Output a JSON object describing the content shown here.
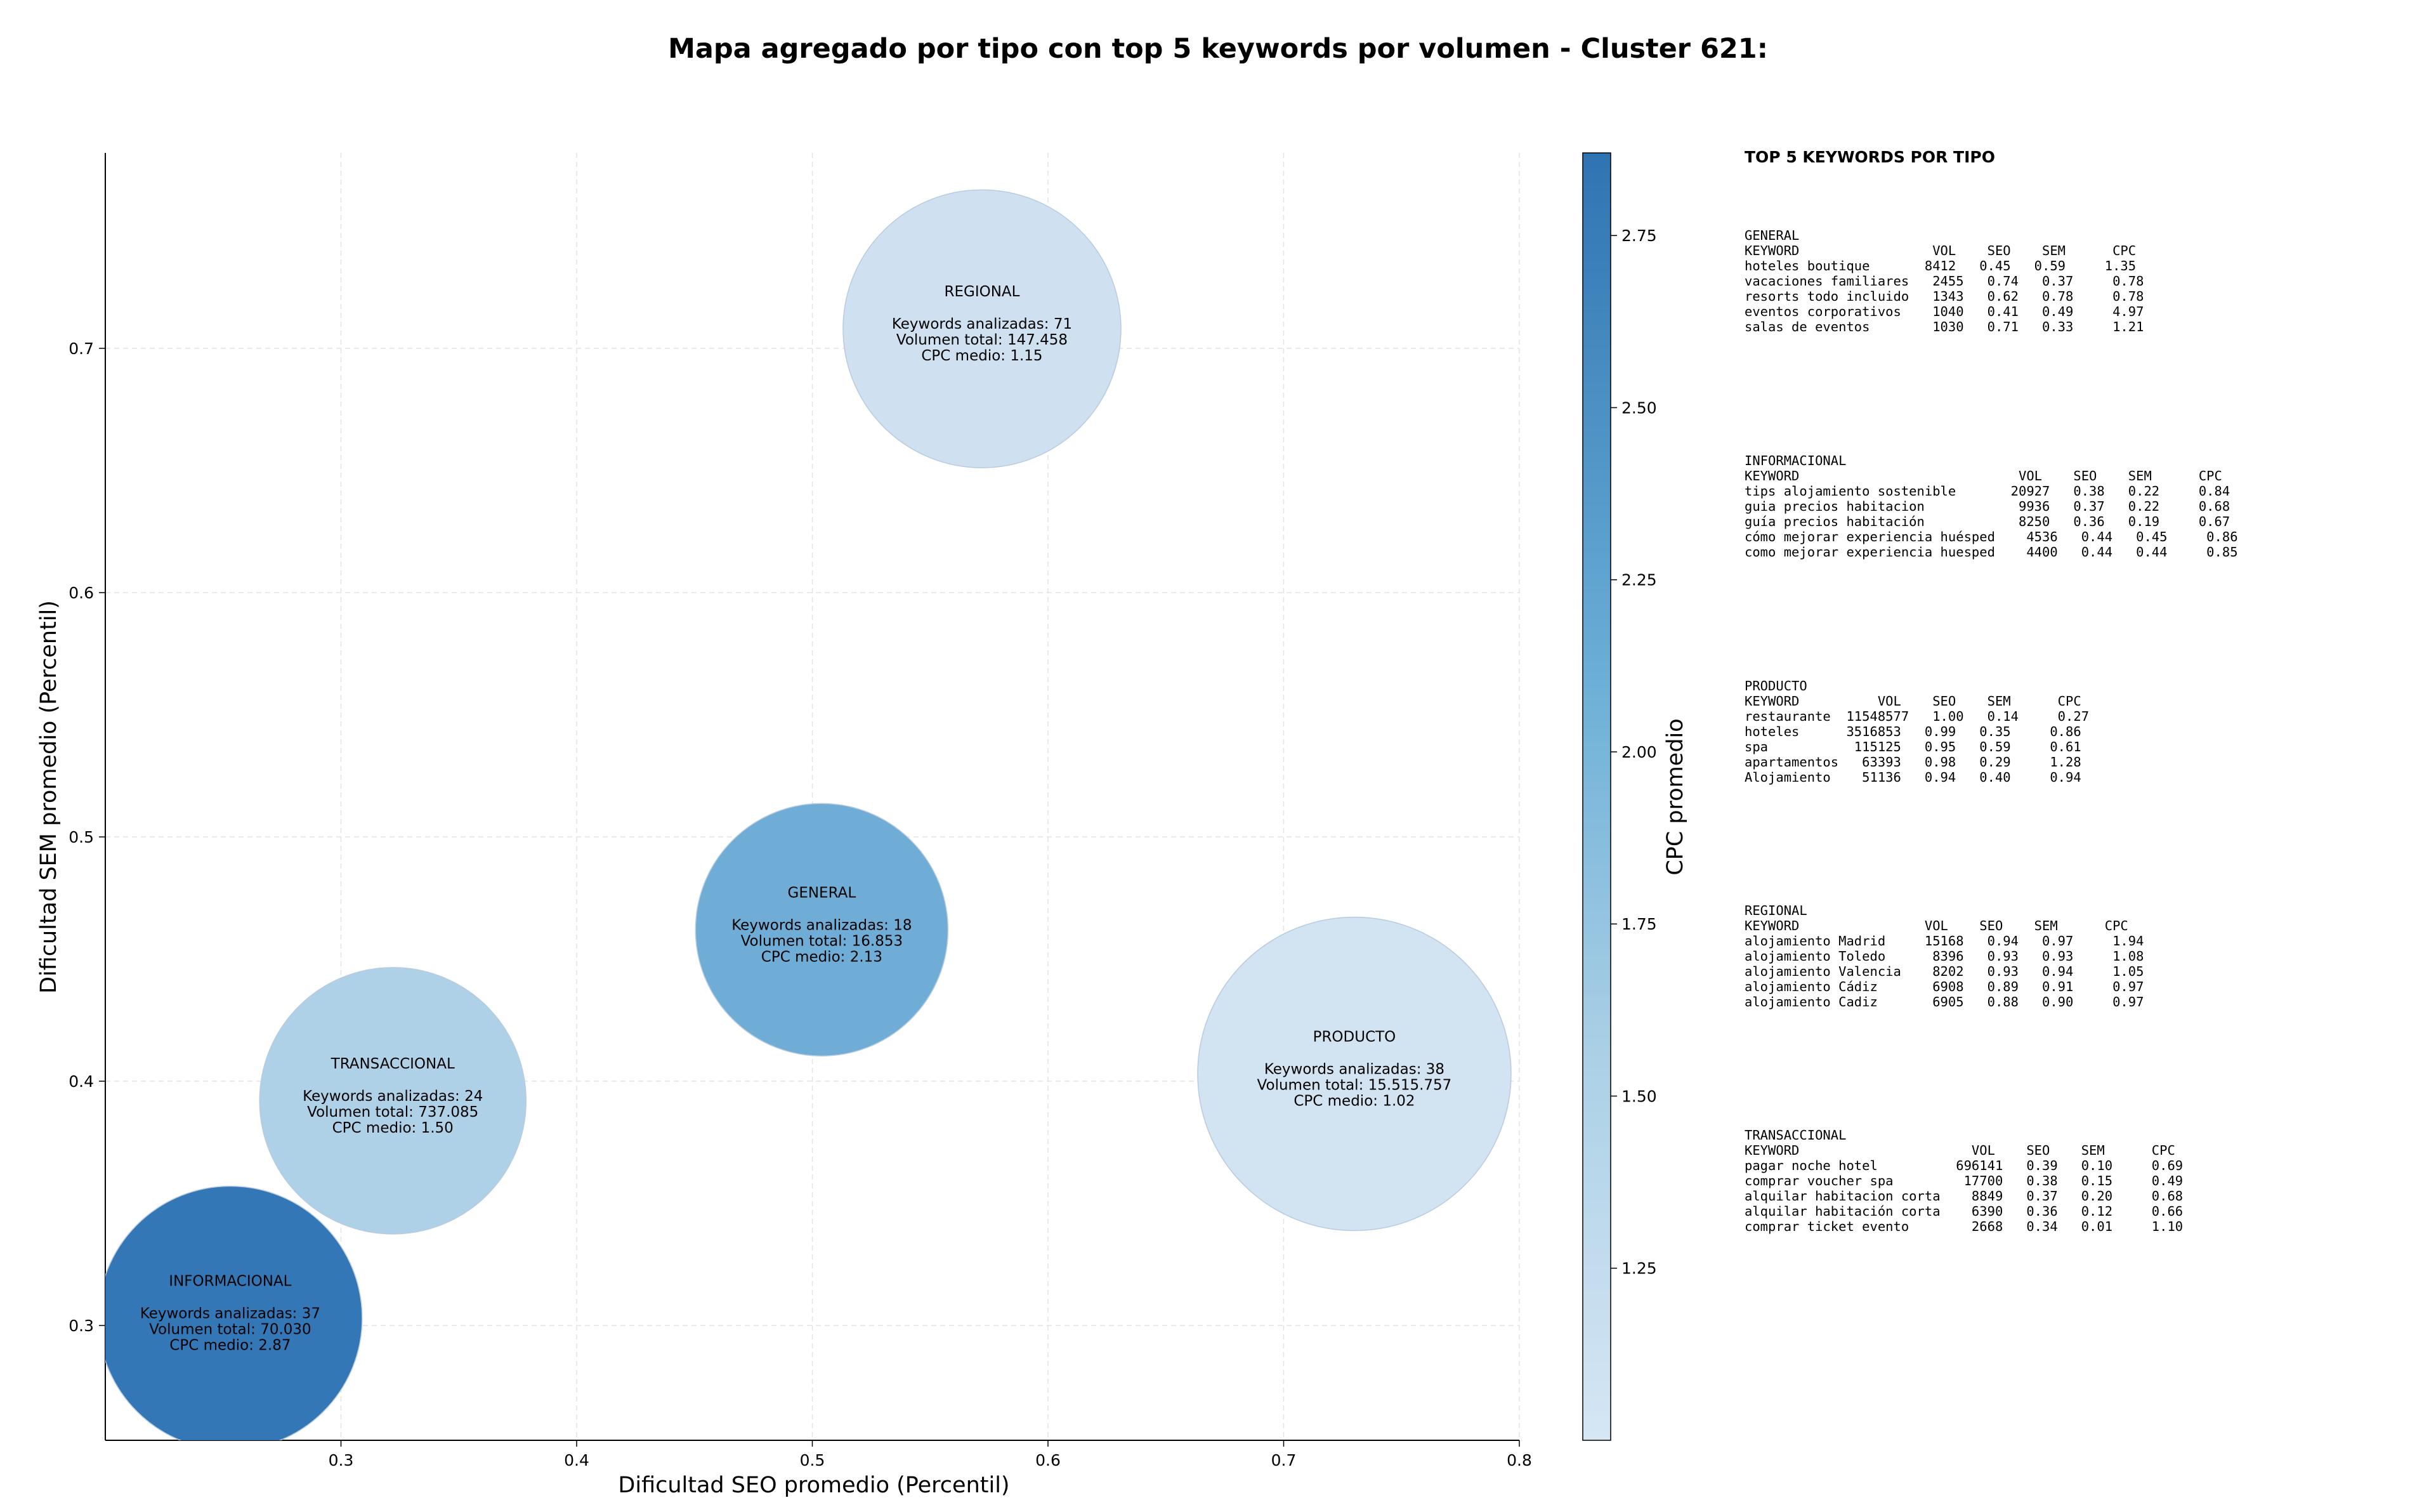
{
  "chart_data": {
    "type": "scatter",
    "title": "Mapa agregado por tipo con top 5 keywords por volumen - Cluster 621:",
    "xlabel": "Dificultad SEO promedio (Percentil)",
    "ylabel": "Dificultad SEM promedio (Percentil)",
    "colorbar_label": "CPC promedio",
    "xlim": [
      0.2,
      0.8
    ],
    "ylim": [
      0.253,
      0.78
    ],
    "xticks": [
      "0.3",
      "0.4",
      "0.5",
      "0.6",
      "0.7",
      "0.8"
    ],
    "yticks": [
      "0.3",
      "0.4",
      "0.5",
      "0.6",
      "0.7"
    ],
    "colorbar_range": [
      1.0,
      2.87
    ],
    "colorbar_ticks": [
      "1.25",
      "1.50",
      "1.75",
      "2.00",
      "2.25",
      "2.50",
      "2.75"
    ],
    "grid": true,
    "points": [
      {
        "name": "REGIONAL",
        "x": 0.572,
        "y": 0.708,
        "keywords_line": "Keywords analizadas: 71",
        "volume_line": "Volumen total: 147.458",
        "cpc_line": "CPC medio: 1.15",
        "cpc": 1.15,
        "size": 71,
        "color": "#cde0ef"
      },
      {
        "name": "GENERAL",
        "x": 0.504,
        "y": 0.462,
        "keywords_line": "Keywords analizadas: 18",
        "volume_line": "Volumen total: 16.853",
        "cpc_line": "CPC medio: 2.13",
        "cpc": 2.13,
        "size": 18,
        "color": "#6aaad5"
      },
      {
        "name": "PRODUCTO",
        "x": 0.73,
        "y": 0.403,
        "keywords_line": "Keywords analizadas: 38",
        "volume_line": "Volumen total: 15.515.757",
        "cpc_line": "CPC medio: 1.02",
        "cpc": 1.02,
        "size": 38,
        "color": "#d1e2f1"
      },
      {
        "name": "TRANSACCIONAL",
        "x": 0.322,
        "y": 0.392,
        "keywords_line": "Keywords analizadas: 24",
        "volume_line": "Volumen total: 737.085",
        "cpc_line": "CPC medio: 1.50",
        "cpc": 1.5,
        "size": 24,
        "color": "#abd0e6"
      },
      {
        "name": "INFORMACIONAL",
        "x": 0.253,
        "y": 0.303,
        "keywords_line": "Keywords analizadas: 37",
        "volume_line": "Volumen total: 70.030",
        "cpc_line": "CPC medio: 2.87",
        "cpc": 2.87,
        "size": 37,
        "color": "#2d73b4"
      }
    ]
  },
  "side_panel": {
    "title": "TOP 5 KEYWORDS POR TIPO",
    "blocks": [
      {
        "type": "GENERAL",
        "lines": [
          "KEYWORD                 VOL    SEO    SEM      CPC",
          "hoteles boutique       8412   0.45   0.59     1.35",
          "vacaciones familiares   2455   0.74   0.37     0.78",
          "resorts todo incluido   1343   0.62   0.78     0.78",
          "eventos corporativos    1040   0.41   0.49     4.97",
          "salas de eventos        1030   0.71   0.33     1.21"
        ]
      },
      {
        "type": "INFORMACIONAL",
        "lines": [
          "KEYWORD                            VOL    SEO    SEM      CPC",
          "tips alojamiento sostenible       20927   0.38   0.22     0.84",
          "guia precios habitacion            9936   0.37   0.22     0.68",
          "guía precios habitación            8250   0.36   0.19     0.67",
          "cómo mejorar experiencia huésped    4536   0.44   0.45     0.86",
          "como mejorar experiencia huesped    4400   0.44   0.44     0.85"
        ]
      },
      {
        "type": "PRODUCTO",
        "lines": [
          "KEYWORD          VOL    SEO    SEM      CPC",
          "restaurante  11548577   1.00   0.14     0.27",
          "hoteles      3516853   0.99   0.35     0.86",
          "spa           115125   0.95   0.59     0.61",
          "apartamentos   63393   0.98   0.29     1.28",
          "Alojamiento    51136   0.94   0.40     0.94"
        ]
      },
      {
        "type": "REGIONAL",
        "lines": [
          "KEYWORD                VOL    SEO    SEM      CPC",
          "alojamiento Madrid     15168   0.94   0.97     1.94",
          "alojamiento Toledo      8396   0.93   0.93     1.08",
          "alojamiento Valencia    8202   0.93   0.94     1.05",
          "alojamiento Cádiz       6908   0.89   0.91     0.97",
          "alojamiento Cadiz       6905   0.88   0.90     0.97"
        ]
      },
      {
        "type": "TRANSACCIONAL",
        "lines": [
          "KEYWORD                      VOL    SEO    SEM      CPC",
          "pagar noche hotel          696141   0.39   0.10     0.69",
          "comprar voucher spa         17700   0.38   0.15     0.49",
          "alquilar habitacion corta    8849   0.37   0.20     0.68",
          "alquilar habitación corta    6390   0.36   0.12     0.66",
          "comprar ticket evento        2668   0.34   0.01     1.10"
        ]
      }
    ]
  }
}
